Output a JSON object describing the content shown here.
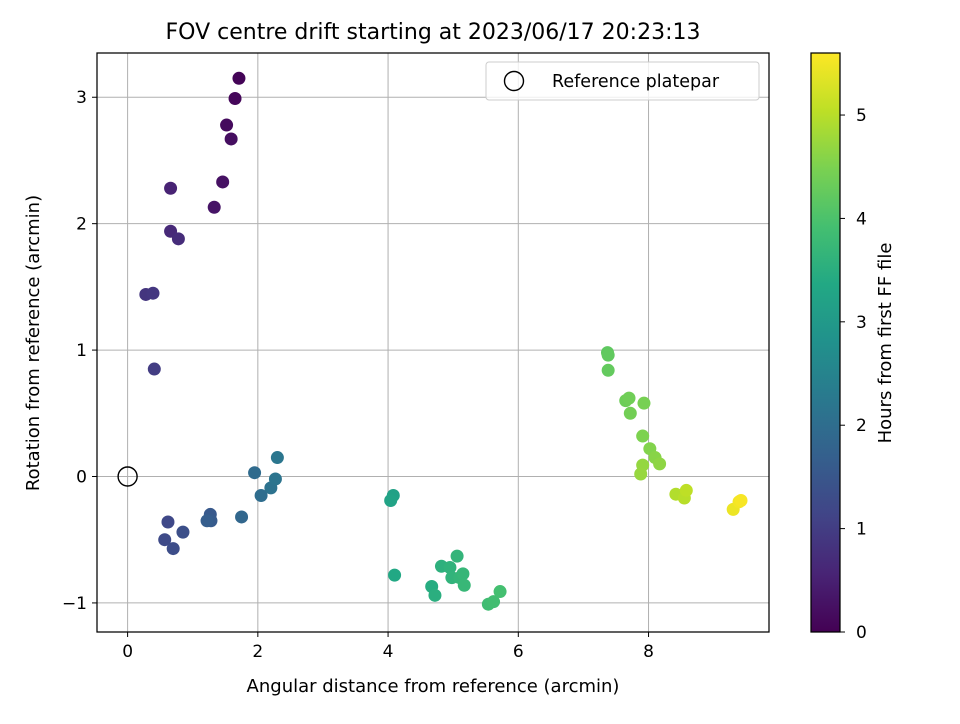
{
  "chart_data": {
    "type": "scatter",
    "title": "FOV centre drift starting at 2023/06/17 20:23:13",
    "xlabel": "Angular distance from reference (arcmin)",
    "ylabel": "Rotation from reference (arcmin)",
    "xlim": [
      -0.47,
      9.85
    ],
    "ylim": [
      -1.23,
      3.35
    ],
    "xticks": [
      0,
      2,
      4,
      6,
      8
    ],
    "yticks": [
      -1,
      0,
      1,
      2,
      3
    ],
    "grid": true,
    "legend": {
      "position": "top-right",
      "entries": [
        "Reference platepar"
      ]
    },
    "reference": {
      "x": 0,
      "y": 0
    },
    "colorbar": {
      "label": "Hours from first FF file",
      "range": [
        0,
        5.6
      ],
      "ticks": [
        0,
        1,
        2,
        3,
        4,
        5
      ],
      "colormap": "viridis"
    },
    "points": [
      {
        "x": 1.71,
        "y": 3.15,
        "c": 0.05
      },
      {
        "x": 1.65,
        "y": 2.99,
        "c": 0.1
      },
      {
        "x": 1.52,
        "y": 2.78,
        "c": 0.15
      },
      {
        "x": 1.59,
        "y": 2.67,
        "c": 0.2
      },
      {
        "x": 1.46,
        "y": 2.33,
        "c": 0.25
      },
      {
        "x": 1.33,
        "y": 2.13,
        "c": 0.3
      },
      {
        "x": 0.66,
        "y": 2.28,
        "c": 0.55
      },
      {
        "x": 0.66,
        "y": 1.94,
        "c": 0.65
      },
      {
        "x": 0.78,
        "y": 1.88,
        "c": 0.7
      },
      {
        "x": 0.28,
        "y": 1.44,
        "c": 0.85
      },
      {
        "x": 0.39,
        "y": 1.45,
        "c": 0.9
      },
      {
        "x": 0.41,
        "y": 0.85,
        "c": 1.0
      },
      {
        "x": 0.62,
        "y": -0.36,
        "c": 1.2
      },
      {
        "x": 0.57,
        "y": -0.5,
        "c": 1.25
      },
      {
        "x": 0.7,
        "y": -0.57,
        "c": 1.3
      },
      {
        "x": 0.85,
        "y": -0.44,
        "c": 1.35
      },
      {
        "x": 1.27,
        "y": -0.3,
        "c": 1.55
      },
      {
        "x": 1.28,
        "y": -0.35,
        "c": 1.6
      },
      {
        "x": 1.22,
        "y": -0.35,
        "c": 1.65
      },
      {
        "x": 1.75,
        "y": -0.32,
        "c": 1.85
      },
      {
        "x": 1.95,
        "y": 0.03,
        "c": 1.95
      },
      {
        "x": 2.05,
        "y": -0.15,
        "c": 2.0
      },
      {
        "x": 2.2,
        "y": -0.09,
        "c": 2.1
      },
      {
        "x": 2.27,
        "y": -0.02,
        "c": 2.15
      },
      {
        "x": 2.3,
        "y": 0.15,
        "c": 2.2
      },
      {
        "x": 4.08,
        "y": -0.15,
        "c": 3.2
      },
      {
        "x": 4.04,
        "y": -0.19,
        "c": 3.25
      },
      {
        "x": 4.1,
        "y": -0.78,
        "c": 3.35
      },
      {
        "x": 4.67,
        "y": -0.87,
        "c": 3.45
      },
      {
        "x": 4.72,
        "y": -0.94,
        "c": 3.5
      },
      {
        "x": 4.82,
        "y": -0.71,
        "c": 3.55
      },
      {
        "x": 4.95,
        "y": -0.72,
        "c": 3.6
      },
      {
        "x": 4.98,
        "y": -0.8,
        "c": 3.62
      },
      {
        "x": 5.06,
        "y": -0.63,
        "c": 3.65
      },
      {
        "x": 5.1,
        "y": -0.8,
        "c": 3.68
      },
      {
        "x": 5.15,
        "y": -0.77,
        "c": 3.7
      },
      {
        "x": 5.17,
        "y": -0.86,
        "c": 3.72
      },
      {
        "x": 5.54,
        "y": -1.01,
        "c": 3.85
      },
      {
        "x": 5.62,
        "y": -0.99,
        "c": 3.88
      },
      {
        "x": 5.72,
        "y": -0.91,
        "c": 3.92
      },
      {
        "x": 7.37,
        "y": 0.98,
        "c": 4.2
      },
      {
        "x": 7.38,
        "y": 0.96,
        "c": 4.22
      },
      {
        "x": 7.38,
        "y": 0.84,
        "c": 4.25
      },
      {
        "x": 7.65,
        "y": 0.6,
        "c": 4.35
      },
      {
        "x": 7.7,
        "y": 0.62,
        "c": 4.38
      },
      {
        "x": 7.72,
        "y": 0.5,
        "c": 4.4
      },
      {
        "x": 7.93,
        "y": 0.58,
        "c": 4.45
      },
      {
        "x": 7.91,
        "y": 0.32,
        "c": 4.5
      },
      {
        "x": 8.02,
        "y": 0.22,
        "c": 4.55
      },
      {
        "x": 8.1,
        "y": 0.15,
        "c": 4.6
      },
      {
        "x": 8.17,
        "y": 0.1,
        "c": 4.65
      },
      {
        "x": 7.91,
        "y": 0.09,
        "c": 4.7
      },
      {
        "x": 7.88,
        "y": 0.02,
        "c": 4.72
      },
      {
        "x": 8.42,
        "y": -0.14,
        "c": 4.95
      },
      {
        "x": 8.55,
        "y": -0.17,
        "c": 5.0
      },
      {
        "x": 8.58,
        "y": -0.11,
        "c": 5.05
      },
      {
        "x": 9.3,
        "y": -0.26,
        "c": 5.45
      },
      {
        "x": 9.39,
        "y": -0.2,
        "c": 5.5
      },
      {
        "x": 9.42,
        "y": -0.19,
        "c": 5.55
      }
    ]
  }
}
